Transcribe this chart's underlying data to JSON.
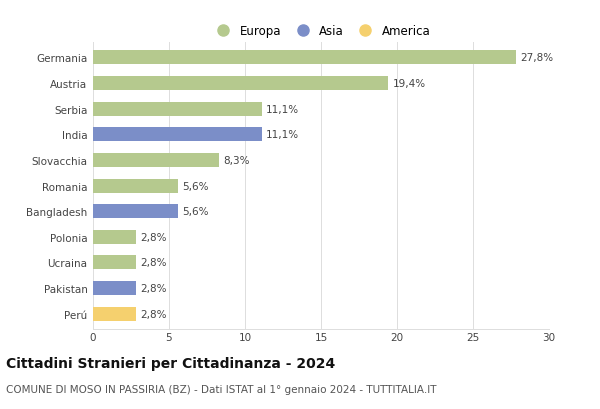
{
  "categories": [
    "Germania",
    "Austria",
    "Serbia",
    "India",
    "Slovacchia",
    "Romania",
    "Bangladesh",
    "Polonia",
    "Ucraina",
    "Pakistan",
    "Perú"
  ],
  "values": [
    27.8,
    19.4,
    11.1,
    11.1,
    8.3,
    5.6,
    5.6,
    2.8,
    2.8,
    2.8,
    2.8
  ],
  "labels": [
    "27,8%",
    "19,4%",
    "11,1%",
    "11,1%",
    "8,3%",
    "5,6%",
    "5,6%",
    "2,8%",
    "2,8%",
    "2,8%",
    "2,8%"
  ],
  "colors": [
    "#b5c98e",
    "#b5c98e",
    "#b5c98e",
    "#7b8ec8",
    "#b5c98e",
    "#b5c98e",
    "#7b8ec8",
    "#b5c98e",
    "#b5c98e",
    "#7b8ec8",
    "#f5d06e"
  ],
  "legend_labels": [
    "Europa",
    "Asia",
    "America"
  ],
  "legend_colors": [
    "#b5c98e",
    "#7b8ec8",
    "#f5d06e"
  ],
  "title": "Cittadini Stranieri per Cittadinanza - 2024",
  "subtitle": "COMUNE DI MOSO IN PASSIRIA (BZ) - Dati ISTAT al 1° gennaio 2024 - TUTTITALIA.IT",
  "xlim": [
    0,
    30
  ],
  "xticks": [
    0,
    5,
    10,
    15,
    20,
    25,
    30
  ],
  "background_color": "#ffffff",
  "grid_color": "#dddddd",
  "bar_height": 0.55,
  "title_fontsize": 10,
  "subtitle_fontsize": 7.5,
  "label_fontsize": 7.5,
  "tick_fontsize": 7.5,
  "legend_fontsize": 8.5
}
